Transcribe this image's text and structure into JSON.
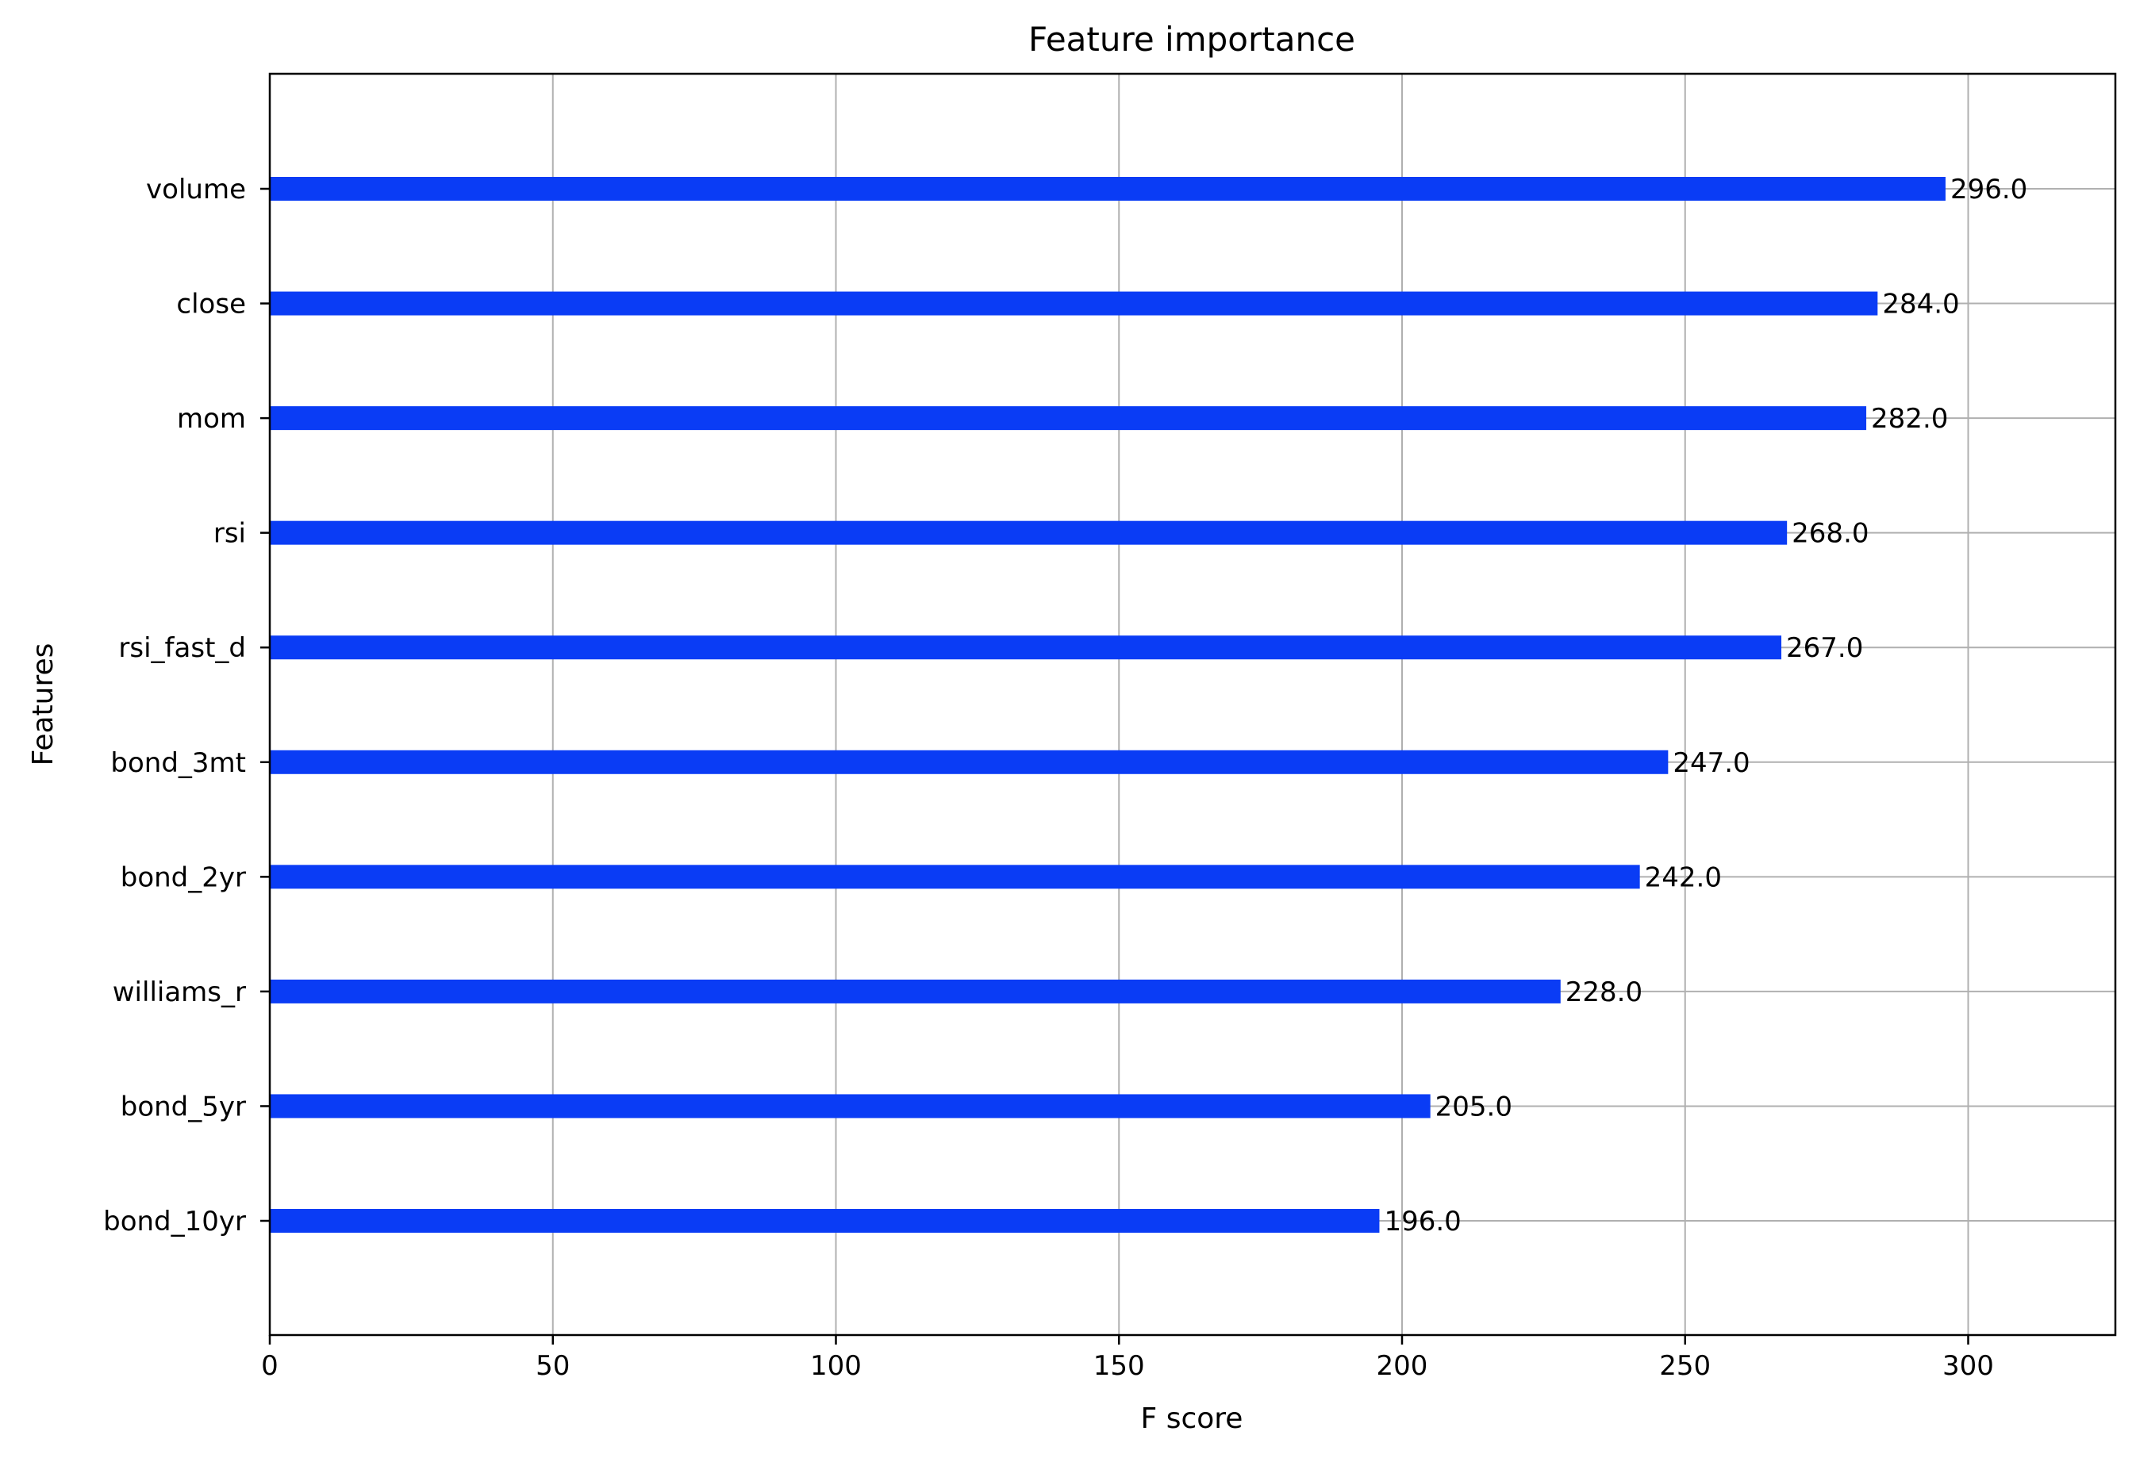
{
  "chart_data": {
    "type": "bar",
    "orientation": "horizontal",
    "title": "Feature importance",
    "xlabel": "F score",
    "ylabel": "Features",
    "xlim": [
      0,
      326
    ],
    "xticks": [
      0,
      50,
      100,
      150,
      200,
      250,
      300
    ],
    "grid": true,
    "bar_color": "#0a3cf5",
    "categories": [
      "volume",
      "close",
      "mom",
      "rsi",
      "rsi_fast_d",
      "bond_3mt",
      "bond_2yr",
      "williams_r",
      "bond_5yr",
      "bond_10yr"
    ],
    "values": [
      296,
      284,
      282,
      268,
      267,
      247,
      242,
      228,
      205,
      196
    ],
    "value_labels": [
      "296.0",
      "284.0",
      "282.0",
      "268.0",
      "267.0",
      "247.0",
      "242.0",
      "228.0",
      "205.0",
      "196.0"
    ]
  }
}
